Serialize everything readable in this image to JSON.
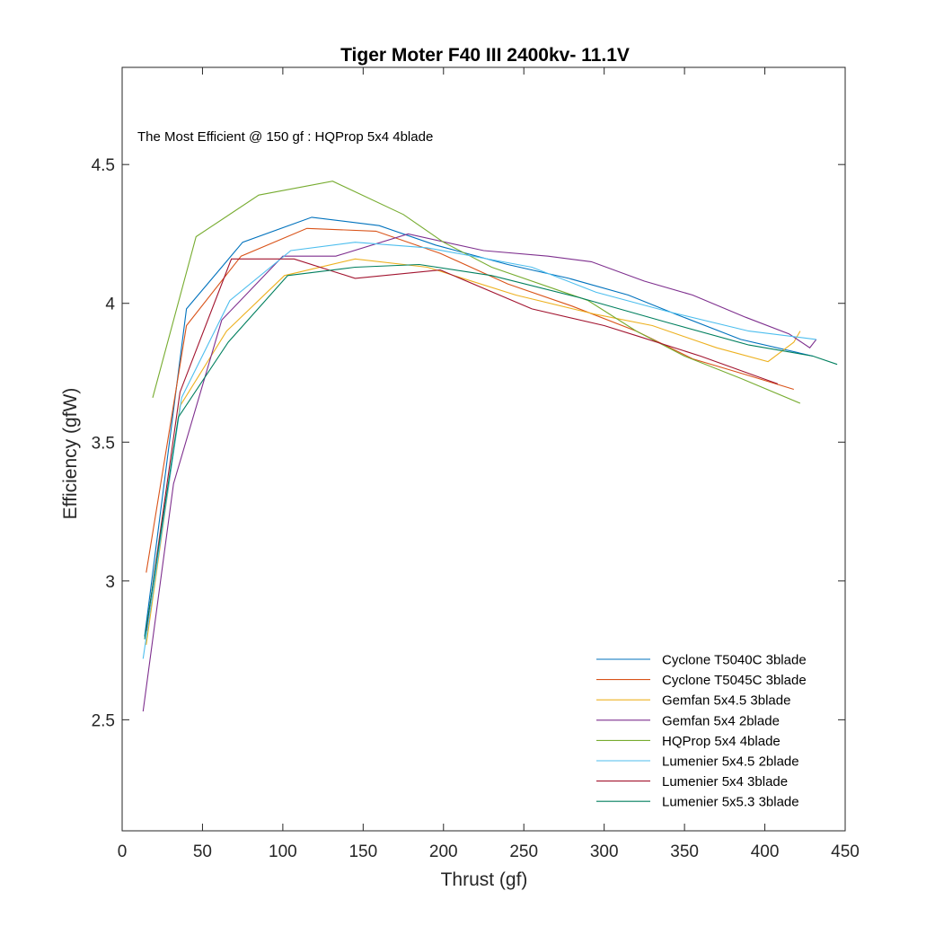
{
  "chart_data": {
    "type": "line",
    "title": "Tiger Moter F40 III 2400kv- 11.1V",
    "xlabel": "Thrust (gf)",
    "ylabel": "Efficiency (gfW)",
    "xlim": [
      0,
      450
    ],
    "ylim": [
      2.1,
      4.85
    ],
    "xticks": [
      0,
      50,
      100,
      150,
      200,
      250,
      300,
      350,
      400,
      450
    ],
    "yticks": [
      2.5,
      3,
      3.5,
      4,
      4.5
    ],
    "xtick_labels": [
      "0",
      "50",
      "100",
      "150",
      "200",
      "250",
      "300",
      "350",
      "400",
      "450"
    ],
    "ytick_labels": [
      "2.5",
      "3",
      "3.5",
      "4",
      "4.5"
    ],
    "grid": false,
    "legend_position": "bottom-right",
    "annotation": "The Most Efficient @ 150 gf :   HQProp 5x4 4blade",
    "series": [
      {
        "name": "Cyclone T5040C 3blade",
        "color": "#0072BD",
        "points": [
          [
            14,
            2.8
          ],
          [
            40,
            3.98
          ],
          [
            75,
            4.22
          ],
          [
            118,
            4.31
          ],
          [
            160,
            4.28
          ],
          [
            195,
            4.21
          ],
          [
            240,
            4.14
          ],
          [
            278,
            4.09
          ],
          [
            315,
            4.03
          ],
          [
            345,
            3.96
          ],
          [
            385,
            3.87
          ],
          [
            430,
            3.81
          ]
        ]
      },
      {
        "name": "Cyclone T5045C 3blade",
        "color": "#D95319",
        "points": [
          [
            15,
            3.03
          ],
          [
            40,
            3.92
          ],
          [
            74,
            4.17
          ],
          [
            115,
            4.27
          ],
          [
            158,
            4.26
          ],
          [
            198,
            4.18
          ],
          [
            240,
            4.07
          ],
          [
            280,
            3.99
          ],
          [
            320,
            3.9
          ],
          [
            355,
            3.8
          ],
          [
            390,
            3.74
          ],
          [
            418,
            3.69
          ]
        ]
      },
      {
        "name": "Gemfan 5x4.5 3blade",
        "color": "#EDB120",
        "points": [
          [
            15,
            2.77
          ],
          [
            36,
            3.63
          ],
          [
            65,
            3.9
          ],
          [
            101,
            4.1
          ],
          [
            145,
            4.16
          ],
          [
            190,
            4.13
          ],
          [
            245,
            4.03
          ],
          [
            295,
            3.96
          ],
          [
            330,
            3.92
          ],
          [
            370,
            3.84
          ],
          [
            402,
            3.79
          ],
          [
            418,
            3.86
          ],
          [
            422,
            3.9
          ]
        ]
      },
      {
        "name": "Gemfan 5x4 2blade",
        "color": "#7E2F8E",
        "points": [
          [
            13,
            2.53
          ],
          [
            32,
            3.35
          ],
          [
            62,
            3.94
          ],
          [
            100,
            4.17
          ],
          [
            133,
            4.17
          ],
          [
            178,
            4.25
          ],
          [
            225,
            4.19
          ],
          [
            265,
            4.17
          ],
          [
            292,
            4.15
          ],
          [
            325,
            4.08
          ],
          [
            355,
            4.03
          ],
          [
            388,
            3.95
          ],
          [
            415,
            3.89
          ],
          [
            428,
            3.84
          ],
          [
            432,
            3.87
          ]
        ]
      },
      {
        "name": "HQProp 5x4 4blade",
        "color": "#77AC30",
        "points": [
          [
            19,
            3.66
          ],
          [
            46,
            4.24
          ],
          [
            85,
            4.39
          ],
          [
            131,
            4.44
          ],
          [
            175,
            4.32
          ],
          [
            200,
            4.22
          ],
          [
            230,
            4.13
          ],
          [
            290,
            4.01
          ],
          [
            320,
            3.9
          ],
          [
            350,
            3.81
          ],
          [
            385,
            3.73
          ],
          [
            422,
            3.64
          ]
        ]
      },
      {
        "name": "Lumenier 5x4.5 2blade",
        "color": "#4DBEEE",
        "points": [
          [
            13,
            2.72
          ],
          [
            37,
            3.66
          ],
          [
            67,
            4.01
          ],
          [
            105,
            4.19
          ],
          [
            145,
            4.22
          ],
          [
            190,
            4.2
          ],
          [
            255,
            4.13
          ],
          [
            295,
            4.04
          ],
          [
            340,
            3.97
          ],
          [
            390,
            3.9
          ],
          [
            432,
            3.87
          ]
        ]
      },
      {
        "name": "Lumenier 5x4 3blade",
        "color": "#A2142F",
        "points": [
          [
            15,
            2.82
          ],
          [
            36,
            3.68
          ],
          [
            68,
            4.16
          ],
          [
            107,
            4.16
          ],
          [
            145,
            4.09
          ],
          [
            198,
            4.12
          ],
          [
            255,
            3.98
          ],
          [
            300,
            3.92
          ],
          [
            322,
            3.88
          ],
          [
            360,
            3.81
          ],
          [
            408,
            3.71
          ]
        ]
      },
      {
        "name": "Lumenier 5x5.3 3blade",
        "color": "#007F5E",
        "points": [
          [
            14,
            2.79
          ],
          [
            35,
            3.59
          ],
          [
            66,
            3.86
          ],
          [
            103,
            4.1
          ],
          [
            145,
            4.13
          ],
          [
            185,
            4.14
          ],
          [
            230,
            4.1
          ],
          [
            285,
            4.02
          ],
          [
            340,
            3.93
          ],
          [
            390,
            3.85
          ],
          [
            430,
            3.81
          ],
          [
            445,
            3.78
          ]
        ]
      }
    ]
  }
}
